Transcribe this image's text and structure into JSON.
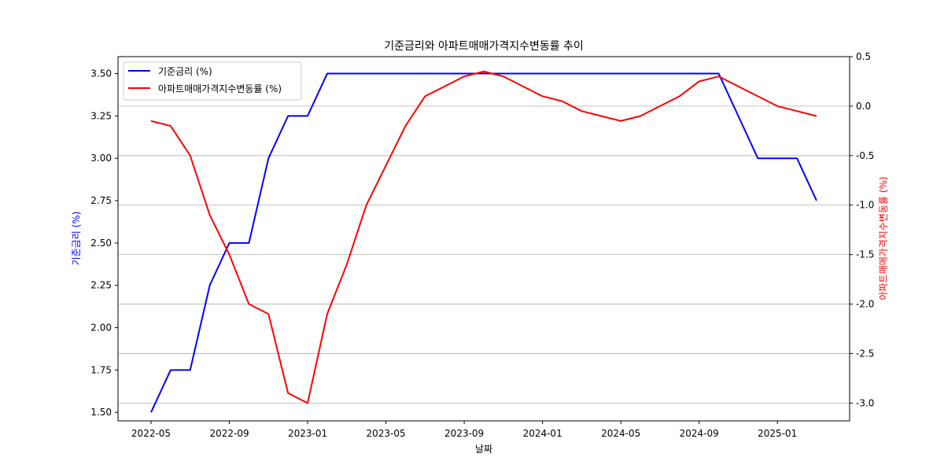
{
  "chart_data": {
    "type": "line",
    "title": "기준금리와 아파트매매가격지수변동률 추이",
    "xlabel": "날짜",
    "ylabel_left": "기준금리 (%)",
    "ylabel_right": "아파트매매가격지수변동률 (%)",
    "x": [
      "2022-05",
      "2022-06",
      "2022-07",
      "2022-08",
      "2022-09",
      "2022-10",
      "2022-11",
      "2022-12",
      "2023-01",
      "2023-02",
      "2023-03",
      "2023-04",
      "2023-05",
      "2023-06",
      "2023-07",
      "2023-08",
      "2023-09",
      "2023-10",
      "2023-11",
      "2023-12",
      "2024-01",
      "2024-02",
      "2024-03",
      "2024-04",
      "2024-05",
      "2024-06",
      "2024-07",
      "2024-08",
      "2024-09",
      "2024-10",
      "2024-11",
      "2024-12",
      "2025-01",
      "2025-02",
      "2025-03"
    ],
    "x_ticks": [
      "2022-05",
      "2022-09",
      "2023-01",
      "2023-05",
      "2023-09",
      "2024-01",
      "2024-05",
      "2024-09",
      "2025-01"
    ],
    "ylim_left": [
      1.45,
      3.6
    ],
    "ylim_right": [
      -3.18,
      0.5
    ],
    "yticks_left": [
      "1.50",
      "1.75",
      "2.00",
      "2.25",
      "2.50",
      "2.75",
      "3.00",
      "3.25",
      "3.50"
    ],
    "yticks_right": [
      "0.5",
      "0.0",
      "-0.5",
      "-1.0",
      "-1.5",
      "-2.0",
      "-2.5",
      "-3.0"
    ],
    "grid": "horizontal on right axis",
    "legend_position": "top-left",
    "series": [
      {
        "name": "기준금리 (%)",
        "axis": "left",
        "color": "#0000ff",
        "values": [
          1.5,
          1.75,
          1.75,
          2.25,
          2.5,
          2.5,
          3.0,
          3.25,
          3.25,
          3.5,
          3.5,
          3.5,
          3.5,
          3.5,
          3.5,
          3.5,
          3.5,
          3.5,
          3.5,
          3.5,
          3.5,
          3.5,
          3.5,
          3.5,
          3.5,
          3.5,
          3.5,
          3.5,
          3.5,
          3.5,
          3.25,
          3.0,
          3.0,
          3.0,
          2.75
        ]
      },
      {
        "name": "아파트매매가격지수변동률 (%)",
        "axis": "right",
        "color": "#ff0000",
        "values": [
          -0.15,
          -0.2,
          -0.5,
          -1.1,
          -1.5,
          -2.0,
          -2.1,
          -2.9,
          -3.0,
          -2.1,
          -1.6,
          -1.0,
          -0.6,
          -0.2,
          0.1,
          0.2,
          0.3,
          0.35,
          0.3,
          0.2,
          0.1,
          0.05,
          -0.05,
          -0.1,
          -0.15,
          -0.1,
          0.0,
          0.1,
          0.25,
          0.3,
          0.2,
          0.1,
          0.0,
          -0.05,
          -0.1
        ]
      }
    ]
  }
}
